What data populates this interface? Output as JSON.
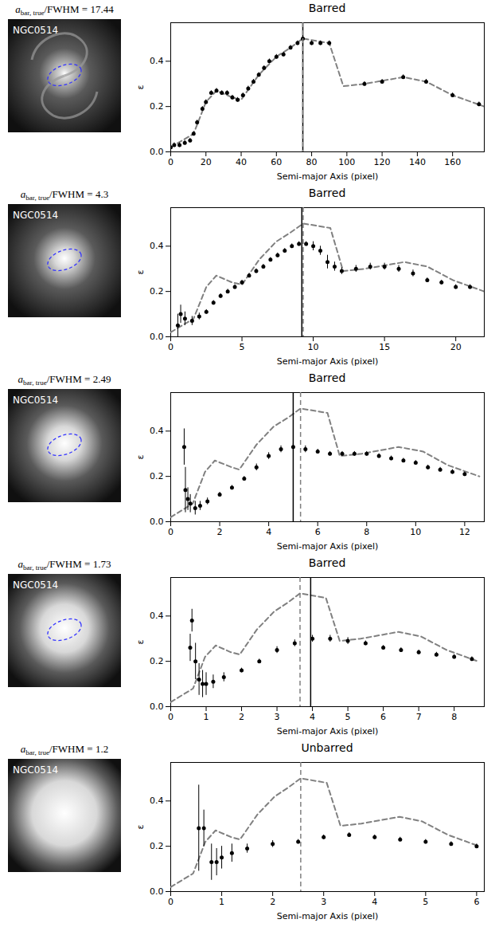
{
  "chart_data": [
    {
      "type": "scatter",
      "title": "Barred",
      "image": {
        "title": {
          "main": "a",
          "sub": "bar, true",
          "rest": "/FWHM = 17.44"
        },
        "name": "NGC0514"
      },
      "x_label": "Semi-major Axis (pixel)",
      "y_label": "ε",
      "xlim": [
        0,
        178
      ],
      "xticks": [
        0,
        20,
        40,
        60,
        80,
        100,
        120,
        140,
        160
      ],
      "ylim": [
        0,
        0.57
      ],
      "yticks": [
        {
          "value": 0,
          "label": "0.0"
        },
        {
          "value": 0.2,
          "label": "0.2"
        },
        {
          "value": 0.4,
          "label": "0.4"
        }
      ],
      "series": [
        {
          "type": "line",
          "color": "#808080",
          "line_style": "dashed",
          "x": [
            0,
            13,
            20,
            26,
            35,
            40,
            50,
            60,
            68,
            75,
            90,
            98,
            110,
            132,
            145,
            160,
            178
          ],
          "values": [
            0.02,
            0.08,
            0.22,
            0.27,
            0.24,
            0.23,
            0.34,
            0.42,
            0.46,
            0.5,
            0.48,
            0.29,
            0.3,
            0.33,
            0.31,
            0.25,
            0.2
          ]
        },
        {
          "type": "scatter",
          "color": "#000000",
          "marker": "circle",
          "x": [
            0,
            2,
            5,
            8,
            11,
            13,
            15,
            18,
            20,
            23,
            26,
            29,
            32,
            35,
            38,
            41,
            44,
            47,
            50,
            53,
            56,
            60,
            64,
            68,
            72,
            75,
            80,
            85,
            90,
            110,
            120,
            132,
            145,
            160,
            175
          ],
          "values": [
            0.02,
            0.03,
            0.03,
            0.04,
            0.05,
            0.08,
            0.13,
            0.19,
            0.22,
            0.26,
            0.27,
            0.26,
            0.26,
            0.24,
            0.23,
            0.25,
            0.28,
            0.31,
            0.34,
            0.37,
            0.4,
            0.42,
            0.43,
            0.46,
            0.48,
            0.5,
            0.48,
            0.48,
            0.48,
            0.3,
            0.31,
            0.33,
            0.31,
            0.25,
            0.21
          ],
          "errors": [
            0.01,
            0.01,
            0.01,
            0.01,
            0.01,
            0.01,
            0.01,
            0.01,
            0.01,
            0.01,
            0.01,
            0.01,
            0.01,
            0.01,
            0.01,
            0.01,
            0.01,
            0.01,
            0.01,
            0.01,
            0.01,
            0.01,
            0.01,
            0.01,
            0.01,
            0.01,
            0.01,
            0.01,
            0.01,
            0.01,
            0.01,
            0.01,
            0.01,
            0.01,
            0.01
          ]
        }
      ],
      "bar_lines": [
        {
          "x": 75,
          "color": "#000000",
          "line_style": "solid"
        },
        {
          "x": 75,
          "color": "#808080",
          "line_style": "dashed"
        }
      ]
    },
    {
      "type": "scatter",
      "title": "Barred",
      "image": {
        "title": {
          "main": "a",
          "sub": "bar, true",
          "rest": "/FWHM = 4.3"
        },
        "name": "NGC0514"
      },
      "x_label": "Semi-major Axis (pixel)",
      "y_label": "ε",
      "xlim": [
        0,
        22
      ],
      "xticks": [
        0,
        5,
        10,
        15,
        20
      ],
      "ylim": [
        0,
        0.57
      ],
      "yticks": [
        {
          "value": 0,
          "label": "0.0"
        },
        {
          "value": 0.2,
          "label": "0.2"
        },
        {
          "value": 0.4,
          "label": "0.4"
        }
      ],
      "series": [
        {
          "type": "line",
          "color": "#808080",
          "line_style": "dashed",
          "x": [
            0,
            1.6,
            2.5,
            3.2,
            4.3,
            5,
            6.2,
            7.4,
            8.4,
            9.3,
            11.2,
            12.1,
            13.6,
            16.4,
            18,
            19.8,
            22
          ],
          "values": [
            0.02,
            0.08,
            0.22,
            0.27,
            0.24,
            0.23,
            0.34,
            0.42,
            0.46,
            0.5,
            0.48,
            0.29,
            0.3,
            0.33,
            0.31,
            0.25,
            0.2
          ]
        },
        {
          "type": "scatter",
          "color": "#000000",
          "marker": "circle",
          "x": [
            0.5,
            0.7,
            1,
            1.5,
            2,
            2.5,
            3,
            3.5,
            4,
            4.5,
            5,
            5.5,
            6,
            6.5,
            7,
            7.5,
            8,
            8.5,
            9,
            9.5,
            10,
            10.5,
            11,
            11.5,
            12,
            13,
            14,
            15,
            16,
            17,
            18,
            19,
            20,
            21
          ],
          "values": [
            0.05,
            0.1,
            0.08,
            0.07,
            0.09,
            0.11,
            0.15,
            0.18,
            0.2,
            0.22,
            0.24,
            0.27,
            0.29,
            0.31,
            0.34,
            0.36,
            0.38,
            0.4,
            0.41,
            0.41,
            0.4,
            0.38,
            0.33,
            0.31,
            0.29,
            0.3,
            0.31,
            0.31,
            0.3,
            0.28,
            0.25,
            0.24,
            0.22,
            0.22
          ],
          "errors": [
            0.05,
            0.04,
            0.03,
            0.02,
            0.015,
            0.01,
            0.01,
            0.01,
            0.01,
            0.01,
            0.01,
            0.01,
            0.01,
            0.01,
            0.01,
            0.01,
            0.01,
            0.01,
            0.01,
            0.01,
            0.02,
            0.02,
            0.03,
            0.02,
            0.015,
            0.015,
            0.015,
            0.015,
            0.015,
            0.015,
            0.01,
            0.01,
            0.01,
            0.01
          ]
        }
      ],
      "bar_lines": [
        {
          "x": 9.2,
          "color": "#000000",
          "line_style": "solid"
        },
        {
          "x": 9.3,
          "color": "#808080",
          "line_style": "dashed"
        }
      ]
    },
    {
      "type": "scatter",
      "title": "Barred",
      "image": {
        "title": {
          "main": "a",
          "sub": "bar, true",
          "rest": "/FWHM = 2.49"
        },
        "name": "NGC0514"
      },
      "x_label": "Semi-major Axis (pixel)",
      "y_label": "ε",
      "xlim": [
        0,
        12.8
      ],
      "xticks": [
        0,
        2,
        4,
        6,
        8,
        10,
        12
      ],
      "ylim": [
        0,
        0.57
      ],
      "yticks": [
        {
          "value": 0,
          "label": "0.0"
        },
        {
          "value": 0.2,
          "label": "0.2"
        },
        {
          "value": 0.4,
          "label": "0.4"
        }
      ],
      "series": [
        {
          "type": "line",
          "color": "#808080",
          "line_style": "dashed",
          "x": [
            0,
            0.9,
            1.4,
            1.8,
            2.5,
            2.8,
            3.5,
            4.2,
            4.8,
            5.3,
            6.4,
            6.9,
            7.8,
            9.3,
            10.3,
            11.3,
            12.6
          ],
          "values": [
            0.02,
            0.08,
            0.22,
            0.27,
            0.24,
            0.23,
            0.34,
            0.42,
            0.46,
            0.5,
            0.48,
            0.29,
            0.3,
            0.33,
            0.31,
            0.25,
            0.2
          ]
        },
        {
          "type": "scatter",
          "color": "#000000",
          "marker": "circle",
          "x": [
            0.55,
            0.6,
            0.7,
            0.8,
            1,
            1.2,
            1.5,
            2,
            2.5,
            3,
            3.5,
            4,
            4.5,
            5,
            5.5,
            6,
            6.5,
            7,
            7.5,
            8,
            8.5,
            9,
            9.5,
            10,
            10.5,
            11,
            11.5,
            12
          ],
          "values": [
            0.33,
            0.14,
            0.1,
            0.08,
            0.06,
            0.07,
            0.09,
            0.12,
            0.15,
            0.19,
            0.24,
            0.29,
            0.32,
            0.33,
            0.32,
            0.31,
            0.3,
            0.3,
            0.3,
            0.3,
            0.29,
            0.28,
            0.27,
            0.26,
            0.24,
            0.23,
            0.22,
            0.21
          ],
          "errors": [
            0.08,
            0.1,
            0.05,
            0.04,
            0.03,
            0.02,
            0.015,
            0.01,
            0.01,
            0.01,
            0.015,
            0.015,
            0.015,
            0.015,
            0.015,
            0.01,
            0.01,
            0.01,
            0.01,
            0.01,
            0.01,
            0.01,
            0.01,
            0.01,
            0.01,
            0.01,
            0.01,
            0.01
          ]
        }
      ],
      "bar_lines": [
        {
          "x": 5.0,
          "color": "#000000",
          "line_style": "solid"
        },
        {
          "x": 5.3,
          "color": "#808080",
          "line_style": "dashed"
        }
      ]
    },
    {
      "type": "scatter",
      "title": "Barred",
      "image": {
        "title": {
          "main": "a",
          "sub": "bar, true",
          "rest": "/FWHM = 1.73"
        },
        "name": "NGC0514"
      },
      "x_label": "Semi-major Axis (pixel)",
      "y_label": "ε",
      "xlim": [
        0,
        8.85
      ],
      "xticks": [
        0,
        1,
        2,
        3,
        4,
        5,
        6,
        7,
        8
      ],
      "ylim": [
        0,
        0.57
      ],
      "yticks": [
        {
          "value": 0,
          "label": "0.0"
        },
        {
          "value": 0.2,
          "label": "0.2"
        },
        {
          "value": 0.4,
          "label": "0.4"
        }
      ],
      "series": [
        {
          "type": "line",
          "color": "#808080",
          "line_style": "dashed",
          "x": [
            0,
            0.63,
            0.97,
            1.27,
            1.7,
            1.95,
            2.43,
            2.92,
            3.31,
            3.65,
            4.38,
            4.77,
            5.36,
            6.43,
            7.06,
            7.79,
            8.67
          ],
          "values": [
            0.02,
            0.08,
            0.22,
            0.27,
            0.24,
            0.23,
            0.34,
            0.42,
            0.46,
            0.5,
            0.48,
            0.29,
            0.3,
            0.33,
            0.31,
            0.25,
            0.2
          ]
        },
        {
          "type": "scatter",
          "color": "#000000",
          "marker": "circle",
          "x": [
            0.55,
            0.6,
            0.7,
            0.8,
            0.9,
            1,
            1.2,
            1.5,
            2,
            2.5,
            3,
            3.5,
            4,
            4.5,
            5,
            5.5,
            6,
            6.5,
            7,
            7.5,
            8,
            8.5
          ],
          "values": [
            0.26,
            0.38,
            0.2,
            0.12,
            0.1,
            0.1,
            0.11,
            0.13,
            0.16,
            0.2,
            0.25,
            0.28,
            0.3,
            0.3,
            0.29,
            0.28,
            0.26,
            0.25,
            0.24,
            0.23,
            0.22,
            0.21
          ],
          "errors": [
            0.06,
            0.05,
            0.08,
            0.07,
            0.06,
            0.05,
            0.03,
            0.02,
            0.01,
            0.01,
            0.015,
            0.015,
            0.015,
            0.015,
            0.015,
            0.01,
            0.01,
            0.01,
            0.01,
            0.01,
            0.01,
            0.01
          ]
        }
      ],
      "bar_lines": [
        {
          "x": 3.95,
          "color": "#000000",
          "line_style": "solid"
        },
        {
          "x": 3.65,
          "color": "#808080",
          "line_style": "dashed"
        }
      ]
    },
    {
      "type": "scatter",
      "title": "Unbarred",
      "image": {
        "title": {
          "main": "a",
          "sub": "bar, true",
          "rest": "/FWHM = 1.2"
        },
        "name": "NGC0514"
      },
      "x_label": "Semi-major Axis (pixel)",
      "y_label": "ε",
      "xlim": [
        0,
        6.15
      ],
      "xticks": [
        0,
        1,
        2,
        3,
        4,
        5,
        6
      ],
      "ylim": [
        0,
        0.57
      ],
      "yticks": [
        {
          "value": 0,
          "label": "0.0"
        },
        {
          "value": 0.2,
          "label": "0.2"
        },
        {
          "value": 0.4,
          "label": "0.4"
        }
      ],
      "series": [
        {
          "type": "line",
          "color": "#808080",
          "line_style": "dashed",
          "x": [
            0,
            0.44,
            0.68,
            0.88,
            1.19,
            1.36,
            1.7,
            2.04,
            2.31,
            2.55,
            3.06,
            3.33,
            3.74,
            4.49,
            4.93,
            5.44,
            6.05
          ],
          "values": [
            0.02,
            0.08,
            0.22,
            0.27,
            0.24,
            0.23,
            0.34,
            0.42,
            0.46,
            0.5,
            0.48,
            0.29,
            0.3,
            0.33,
            0.31,
            0.25,
            0.2
          ]
        },
        {
          "type": "scatter",
          "color": "#000000",
          "marker": "circle",
          "x": [
            0.55,
            0.65,
            0.8,
            0.9,
            1,
            1.2,
            1.5,
            2,
            2.5,
            3,
            3.5,
            4,
            4.5,
            5,
            5.5,
            6
          ],
          "values": [
            0.28,
            0.28,
            0.13,
            0.13,
            0.15,
            0.17,
            0.19,
            0.21,
            0.22,
            0.24,
            0.25,
            0.24,
            0.23,
            0.22,
            0.21,
            0.2
          ],
          "errors": [
            0.19,
            0.08,
            0.08,
            0.06,
            0.05,
            0.04,
            0.02,
            0.015,
            0.01,
            0.01,
            0.01,
            0.01,
            0.01,
            0.01,
            0.01,
            0.01
          ]
        }
      ],
      "bar_lines": [
        {
          "x": 2.55,
          "color": "#808080",
          "line_style": "dashed"
        }
      ]
    }
  ]
}
